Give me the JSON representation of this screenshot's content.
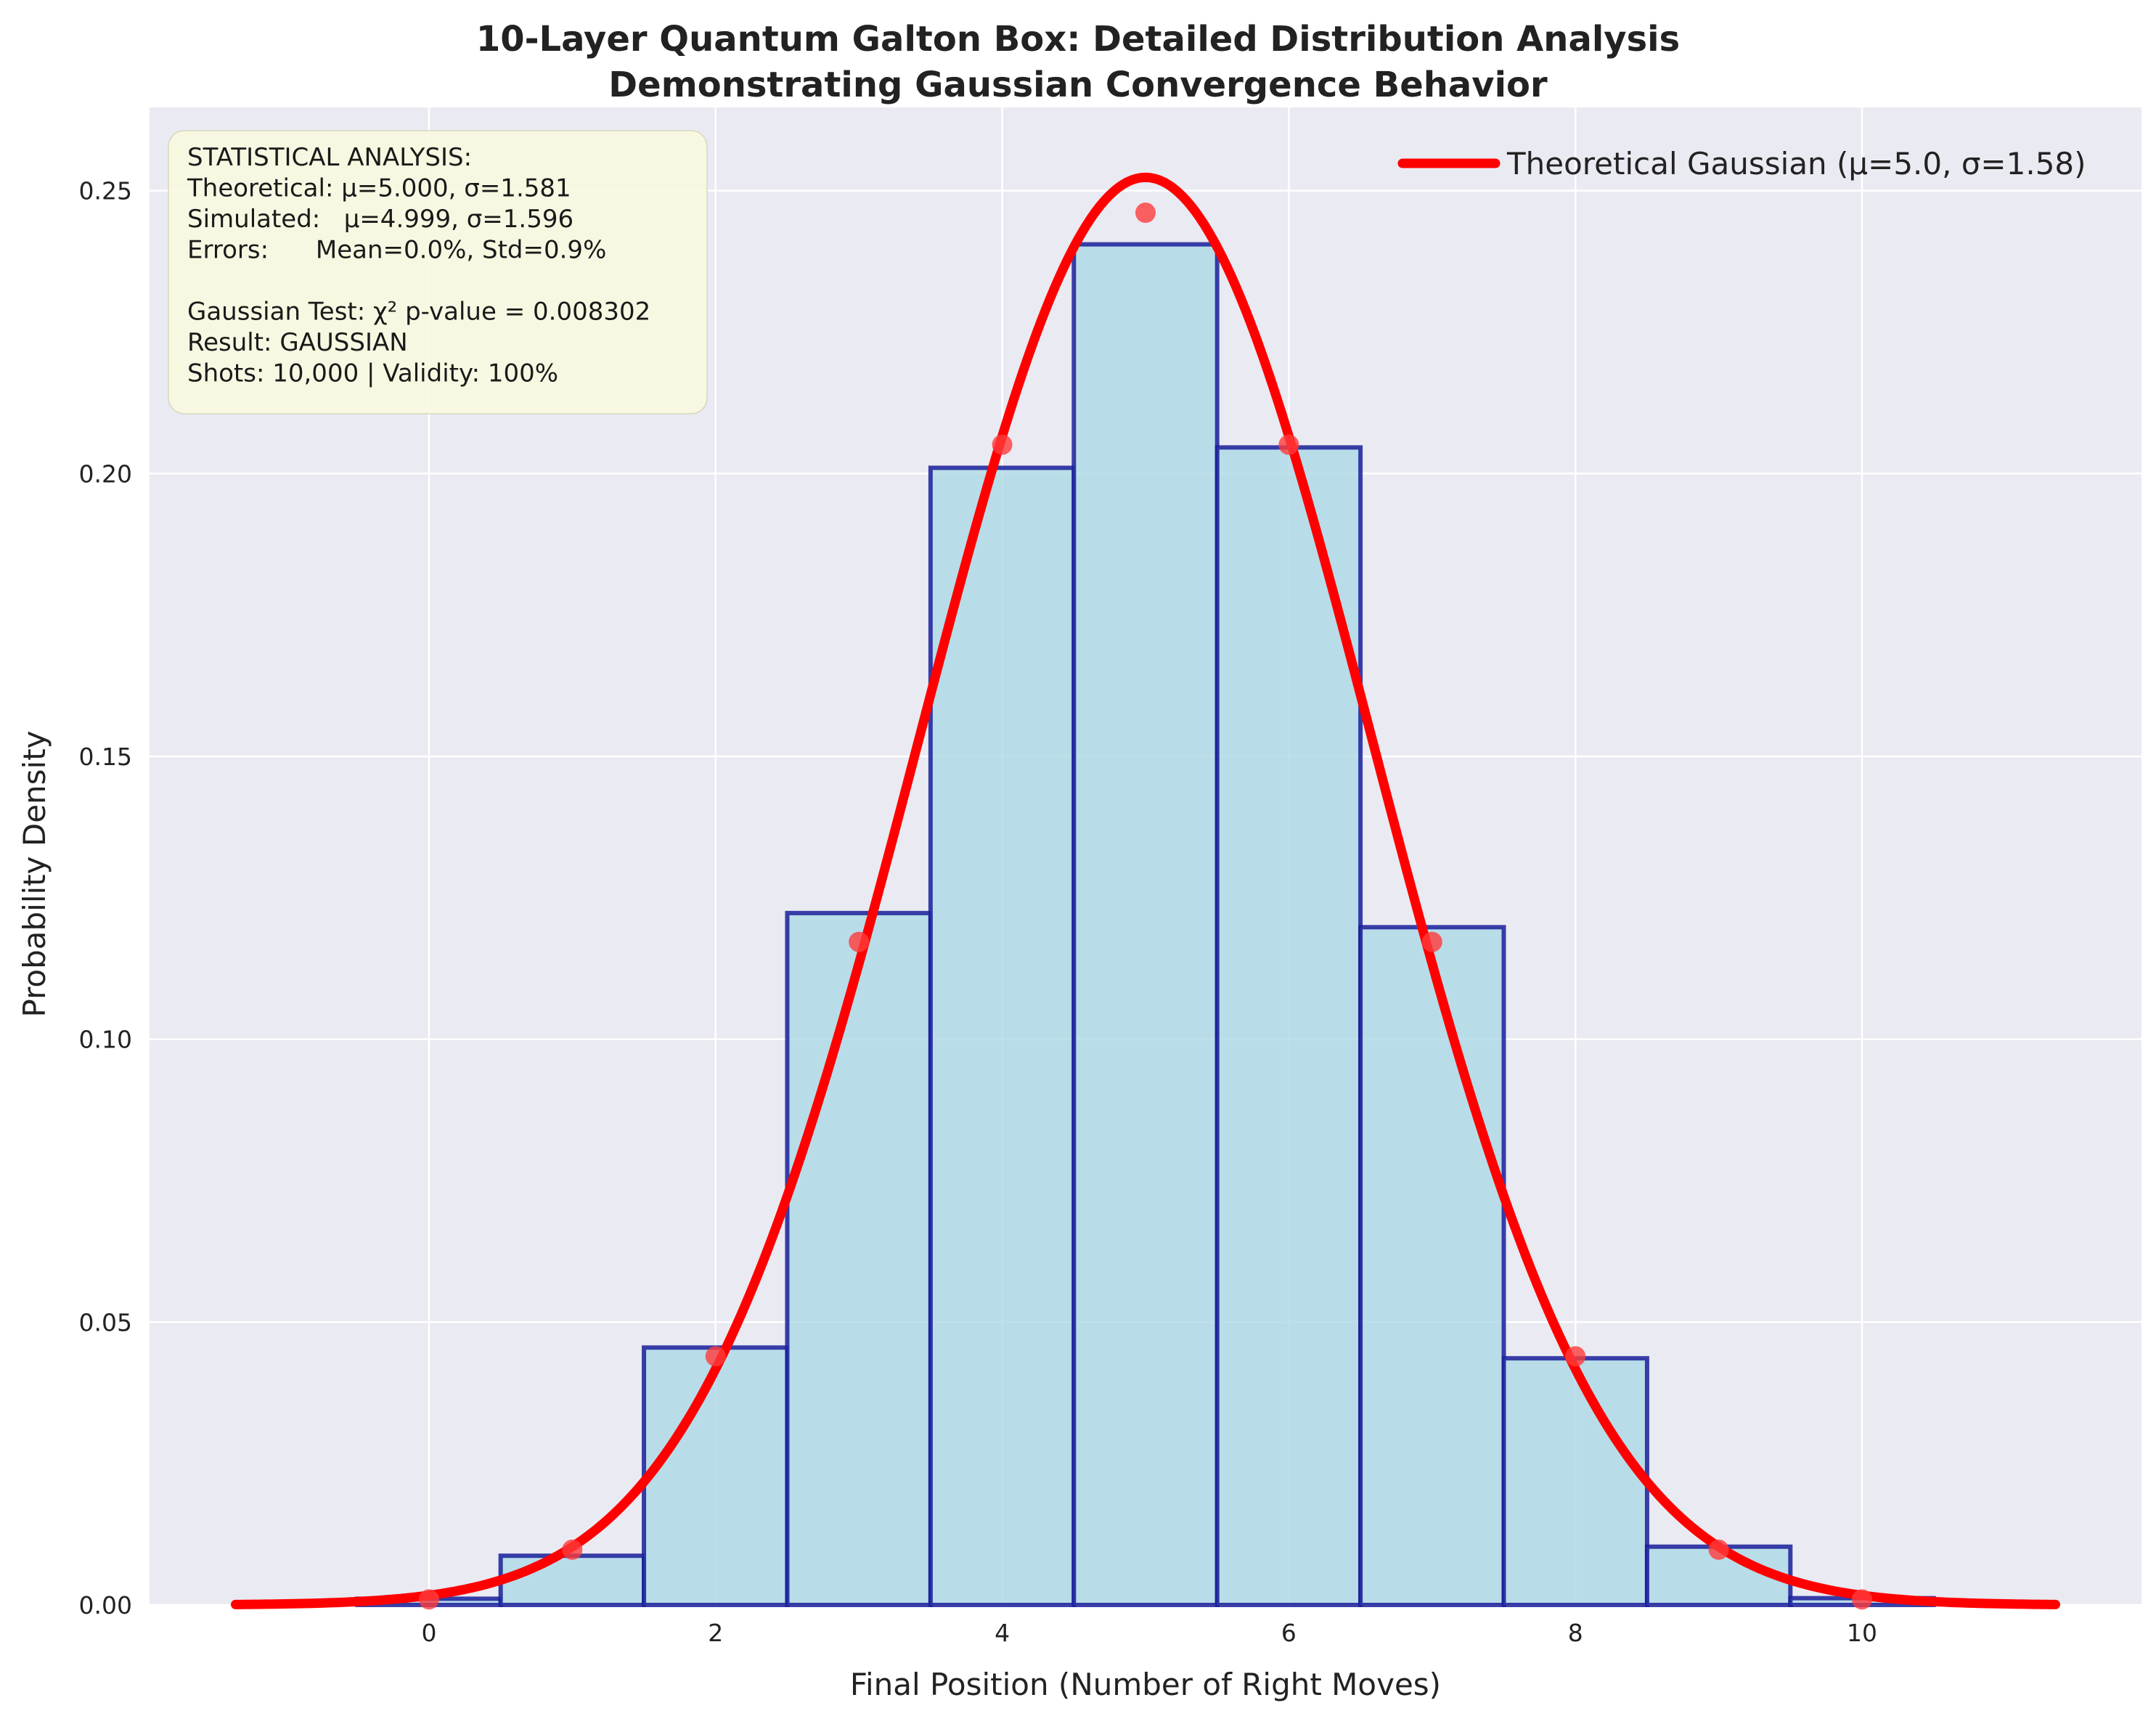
{
  "chart_data": {
    "type": "bar",
    "title_line1": "10-Layer Quantum Galton Box: Detailed Distribution Analysis",
    "title_line2": "Demonstrating Gaussian Convergence Behavior",
    "xlabel": "Final Position (Number of Right Moves)",
    "ylabel": "Probability Density",
    "xlim": [
      -1.95,
      11.95
    ],
    "ylim": [
      0,
      0.2647
    ],
    "xticks": [
      0,
      2,
      4,
      6,
      8,
      10
    ],
    "yticks": [
      0.0,
      0.05,
      0.1,
      0.15,
      0.2,
      0.25
    ],
    "grid": true,
    "legend_position": "top-right",
    "histogram": {
      "name": "Simulated",
      "categories": [
        0,
        1,
        2,
        3,
        4,
        5,
        6,
        7,
        8,
        9,
        10
      ],
      "values": [
        0.0011,
        0.0087,
        0.0455,
        0.1223,
        0.201,
        0.2405,
        0.2046,
        0.1198,
        0.0436,
        0.0103,
        0.0012
      ],
      "fill": "#add8e6",
      "edge": "#1a1f9a"
    },
    "binomial_points": {
      "x": [
        0,
        1,
        2,
        3,
        4,
        5,
        6,
        7,
        8,
        9,
        10
      ],
      "values": [
        0.00098,
        0.00977,
        0.04395,
        0.11719,
        0.20508,
        0.24609,
        0.20508,
        0.11719,
        0.04395,
        0.00977,
        0.00098
      ],
      "color": "#ff3b3b"
    },
    "gaussian_curve": {
      "name": "Theoretical Gaussian (μ=5.0, σ=1.58)",
      "mu": 5.0,
      "sigma": 1.581,
      "x_range": [
        -1.35,
        11.35
      ],
      "color": "#ff0000"
    },
    "stats_box": {
      "lines": [
        "STATISTICAL ANALYSIS:",
        "Theoretical: μ=5.000, σ=1.581",
        "Simulated:   μ=4.999, σ=1.596",
        "Errors:      Mean=0.0%, Std=0.9%",
        "",
        "Gaussian Test: χ² p-value = 0.008302",
        "Result: GAUSSIAN",
        "Shots: 10,000 | Validity: 100%"
      ],
      "background": "#fafae0"
    },
    "colors": {
      "plot_background": "#eaeaf2",
      "grid": "#ffffff"
    }
  }
}
